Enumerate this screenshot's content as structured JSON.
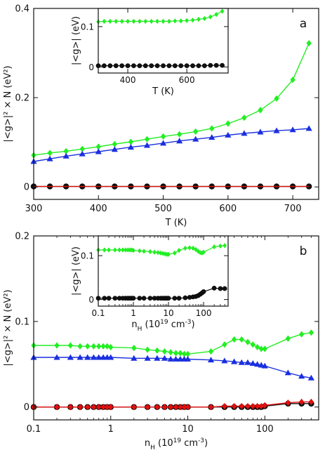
{
  "colors": {
    "green": "#22ee22",
    "blue": "#1a2fe0",
    "red": "#e01010",
    "black": "#111111",
    "frame": "#111111"
  },
  "chart_data": [
    {
      "id": "a",
      "type": "line",
      "panel_label": "a",
      "xlabel": "T (K)",
      "ylabel": "|<g>|² × N (eV²)",
      "xlim": [
        300,
        740
      ],
      "ylim": [
        -0.028,
        0.4
      ],
      "xscale": "linear",
      "xticks": [
        300,
        400,
        500,
        600,
        700
      ],
      "xtick_labels": [
        "300",
        "400",
        "500",
        "600",
        "700"
      ],
      "yticks": [
        0,
        0.2,
        0.4
      ],
      "ytick_labels": [
        "0",
        "0.2",
        "0.4"
      ],
      "grid": false,
      "series": [
        {
          "marker": "diamond",
          "color": "green",
          "x": [
            300,
            325,
            350,
            375,
            400,
            425,
            450,
            475,
            500,
            525,
            550,
            575,
            600,
            625,
            650,
            675,
            700,
            725
          ],
          "y": [
            0.071,
            0.076,
            0.08,
            0.085,
            0.09,
            0.096,
            0.101,
            0.107,
            0.113,
            0.118,
            0.124,
            0.131,
            0.142,
            0.155,
            0.172,
            0.198,
            0.24,
            0.322
          ]
        },
        {
          "marker": "triangle",
          "color": "blue",
          "x": [
            300,
            325,
            350,
            375,
            400,
            425,
            450,
            475,
            500,
            525,
            550,
            575,
            600,
            625,
            650,
            675,
            700,
            725
          ],
          "y": [
            0.057,
            0.063,
            0.069,
            0.074,
            0.079,
            0.084,
            0.089,
            0.093,
            0.098,
            0.103,
            0.107,
            0.111,
            0.116,
            0.12,
            0.123,
            0.126,
            0.128,
            0.131
          ]
        },
        {
          "marker": "circle",
          "color": "black",
          "x": [
            300,
            325,
            350,
            375,
            400,
            425,
            450,
            475,
            500,
            525,
            550,
            575,
            600,
            625,
            650,
            675,
            700,
            725
          ],
          "y": [
            0.001,
            0.001,
            0.001,
            0.001,
            0.001,
            0.001,
            0.001,
            0.001,
            0.001,
            0.001,
            0.001,
            0.001,
            0.001,
            0.001,
            0.001,
            0.001,
            0.001,
            0.001
          ]
        },
        {
          "marker": "none",
          "color": "red",
          "x": [
            300,
            725
          ],
          "y": [
            0.001,
            0.001
          ]
        }
      ],
      "inset": {
        "xlabel": "T (K)",
        "ylabel": "|<g>| (eV)",
        "xlim": [
          300,
          740
        ],
        "ylim": [
          -0.015,
          0.145
        ],
        "xticks": [
          400,
          600
        ],
        "xtick_labels": [
          "400",
          "600"
        ],
        "yticks": [
          0,
          0.1
        ],
        "ytick_labels": [
          "0",
          "0.1"
        ],
        "series": [
          {
            "marker": "diamond",
            "color": "green",
            "x": [
              300,
              320,
              340,
              360,
              380,
              400,
              420,
              440,
              460,
              480,
              500,
              520,
              540,
              560,
              580,
              600,
              620,
              640,
              660,
              680,
              700,
              720
            ],
            "y": [
              0.112,
              0.113,
              0.113,
              0.113,
              0.113,
              0.113,
              0.113,
              0.113,
              0.113,
              0.113,
              0.113,
              0.113,
              0.113,
              0.114,
              0.114,
              0.115,
              0.116,
              0.118,
              0.12,
              0.124,
              0.13,
              0.138
            ]
          },
          {
            "marker": "circle",
            "color": "black",
            "x": [
              300,
              320,
              340,
              360,
              380,
              400,
              420,
              440,
              460,
              480,
              500,
              520,
              540,
              560,
              580,
              600,
              620,
              640,
              660,
              680,
              700,
              720
            ],
            "y": [
              0.003,
              0.003,
              0.003,
              0.003,
              0.003,
              0.003,
              0.003,
              0.003,
              0.003,
              0.003,
              0.003,
              0.003,
              0.003,
              0.003,
              0.003,
              0.003,
              0.003,
              0.003,
              0.003,
              0.004,
              0.004,
              0.004
            ]
          }
        ]
      }
    },
    {
      "id": "b",
      "type": "line",
      "panel_label": "b",
      "xlabel": "n_H (10^19 cm^-3)",
      "ylabel": "|<g>|² × N (eV²)",
      "xlim": [
        0.1,
        500
      ],
      "ylim": [
        -0.015,
        0.2
      ],
      "xscale": "log",
      "xticks": [
        0.1,
        1,
        10,
        100
      ],
      "xtick_labels": [
        "0.1",
        "1",
        "10",
        "100"
      ],
      "yticks": [
        0,
        0.1,
        0.2
      ],
      "ytick_labels": [
        "0",
        "0.1",
        "0.2"
      ],
      "grid": false,
      "series": [
        {
          "marker": "diamond",
          "color": "green",
          "x": [
            0.1,
            0.2,
            0.3,
            0.4,
            0.5,
            0.6,
            0.7,
            0.8,
            0.9,
            1,
            2,
            3,
            4,
            5,
            6,
            7,
            8,
            9,
            10,
            20,
            30,
            40,
            50,
            60,
            70,
            80,
            90,
            100,
            200,
            300,
            400
          ],
          "y": [
            0.072,
            0.072,
            0.072,
            0.071,
            0.071,
            0.071,
            0.071,
            0.071,
            0.071,
            0.07,
            0.069,
            0.067,
            0.066,
            0.065,
            0.064,
            0.063,
            0.063,
            0.062,
            0.062,
            0.065,
            0.073,
            0.079,
            0.079,
            0.076,
            0.073,
            0.07,
            0.068,
            0.068,
            0.08,
            0.085,
            0.087
          ]
        },
        {
          "marker": "triangle",
          "color": "blue",
          "x": [
            0.1,
            0.2,
            0.3,
            0.4,
            0.5,
            0.6,
            0.7,
            0.8,
            0.9,
            1,
            2,
            3,
            4,
            5,
            6,
            7,
            8,
            9,
            10,
            20,
            30,
            40,
            50,
            60,
            70,
            80,
            90,
            100,
            200,
            300,
            400
          ],
          "y": [
            0.058,
            0.058,
            0.058,
            0.058,
            0.058,
            0.058,
            0.058,
            0.058,
            0.058,
            0.058,
            0.057,
            0.057,
            0.057,
            0.057,
            0.056,
            0.056,
            0.056,
            0.056,
            0.056,
            0.055,
            0.054,
            0.053,
            0.052,
            0.052,
            0.051,
            0.05,
            0.049,
            0.048,
            0.04,
            0.036,
            0.034
          ]
        },
        {
          "marker": "circle",
          "color": "black",
          "x": [
            0.1,
            0.2,
            0.3,
            0.4,
            0.5,
            0.6,
            0.7,
            0.8,
            0.9,
            1,
            2,
            3,
            4,
            5,
            6,
            7,
            8,
            9,
            10,
            20,
            30,
            40,
            50,
            60,
            70,
            80,
            90,
            100,
            200,
            300,
            400
          ],
          "y": [
            0,
            0,
            0,
            0,
            0,
            0,
            0,
            0,
            0,
            0,
            0,
            0,
            0,
            0,
            0,
            0,
            0,
            0,
            0,
            0,
            0,
            0,
            0,
            0,
            0,
            0,
            0,
            0.001,
            0.004,
            0.004,
            0.004
          ]
        },
        {
          "marker": "diamond",
          "color": "red",
          "x": [
            0.1,
            0.2,
            0.3,
            0.4,
            0.5,
            0.6,
            0.7,
            0.8,
            0.9,
            1,
            2,
            3,
            4,
            5,
            6,
            7,
            8,
            9,
            10,
            20,
            30,
            40,
            50,
            60,
            70,
            80,
            90,
            100,
            200,
            300,
            400
          ],
          "y": [
            0,
            0,
            0,
            0,
            0,
            0,
            0,
            0,
            0,
            0,
            0,
            0,
            0,
            0,
            0,
            0,
            0,
            0,
            0,
            0,
            0.001,
            0.001,
            0.001,
            0.001,
            0.001,
            0.001,
            0.001,
            0.002,
            0.005,
            0.006,
            0.006
          ]
        }
      ],
      "inset": {
        "xlabel": "n_H (10^19 cm^-3)",
        "ylabel": "|<g>| (eV)",
        "xlim": [
          0.1,
          500
        ],
        "ylim": [
          -0.015,
          0.145
        ],
        "xscale": "log",
        "xticks": [
          0.1,
          1,
          10,
          100
        ],
        "xtick_labels": [
          "0.1",
          "1",
          "10",
          "100"
        ],
        "yticks": [
          0,
          0.1
        ],
        "ytick_labels": [
          "0",
          "0.1"
        ],
        "series": [
          {
            "marker": "diamond",
            "color": "green",
            "x": [
              0.1,
              0.15,
              0.2,
              0.3,
              0.4,
              0.5,
              0.6,
              0.7,
              0.8,
              0.9,
              1,
              1.5,
              2,
              3,
              4,
              5,
              6,
              7,
              8,
              9,
              10,
              15,
              20,
              30,
              40,
              50,
              60,
              70,
              80,
              90,
              100,
              200,
              300,
              400
            ],
            "y": [
              0.113,
              0.113,
              0.113,
              0.113,
              0.113,
              0.113,
              0.113,
              0.113,
              0.113,
              0.113,
              0.112,
              0.111,
              0.11,
              0.109,
              0.108,
              0.107,
              0.106,
              0.105,
              0.104,
              0.103,
              0.103,
              0.106,
              0.112,
              0.117,
              0.118,
              0.117,
              0.114,
              0.11,
              0.107,
              0.106,
              0.108,
              0.12,
              0.122,
              0.123
            ]
          },
          {
            "marker": "circle",
            "color": "black",
            "x": [
              0.1,
              0.15,
              0.2,
              0.3,
              0.4,
              0.5,
              0.6,
              0.7,
              0.8,
              0.9,
              1,
              1.5,
              2,
              3,
              4,
              5,
              6,
              7,
              8,
              9,
              10,
              15,
              20,
              30,
              40,
              50,
              60,
              70,
              80,
              90,
              100,
              200,
              300,
              400
            ],
            "y": [
              0.003,
              0.003,
              0.003,
              0.003,
              0.003,
              0.003,
              0.003,
              0.003,
              0.003,
              0.003,
              0.003,
              0.003,
              0.003,
              0.003,
              0.003,
              0.003,
              0.003,
              0.003,
              0.003,
              0.003,
              0.003,
              0.003,
              0.003,
              0.004,
              0.005,
              0.006,
              0.007,
              0.009,
              0.012,
              0.015,
              0.018,
              0.026,
              0.025,
              0.025
            ]
          }
        ]
      }
    }
  ]
}
